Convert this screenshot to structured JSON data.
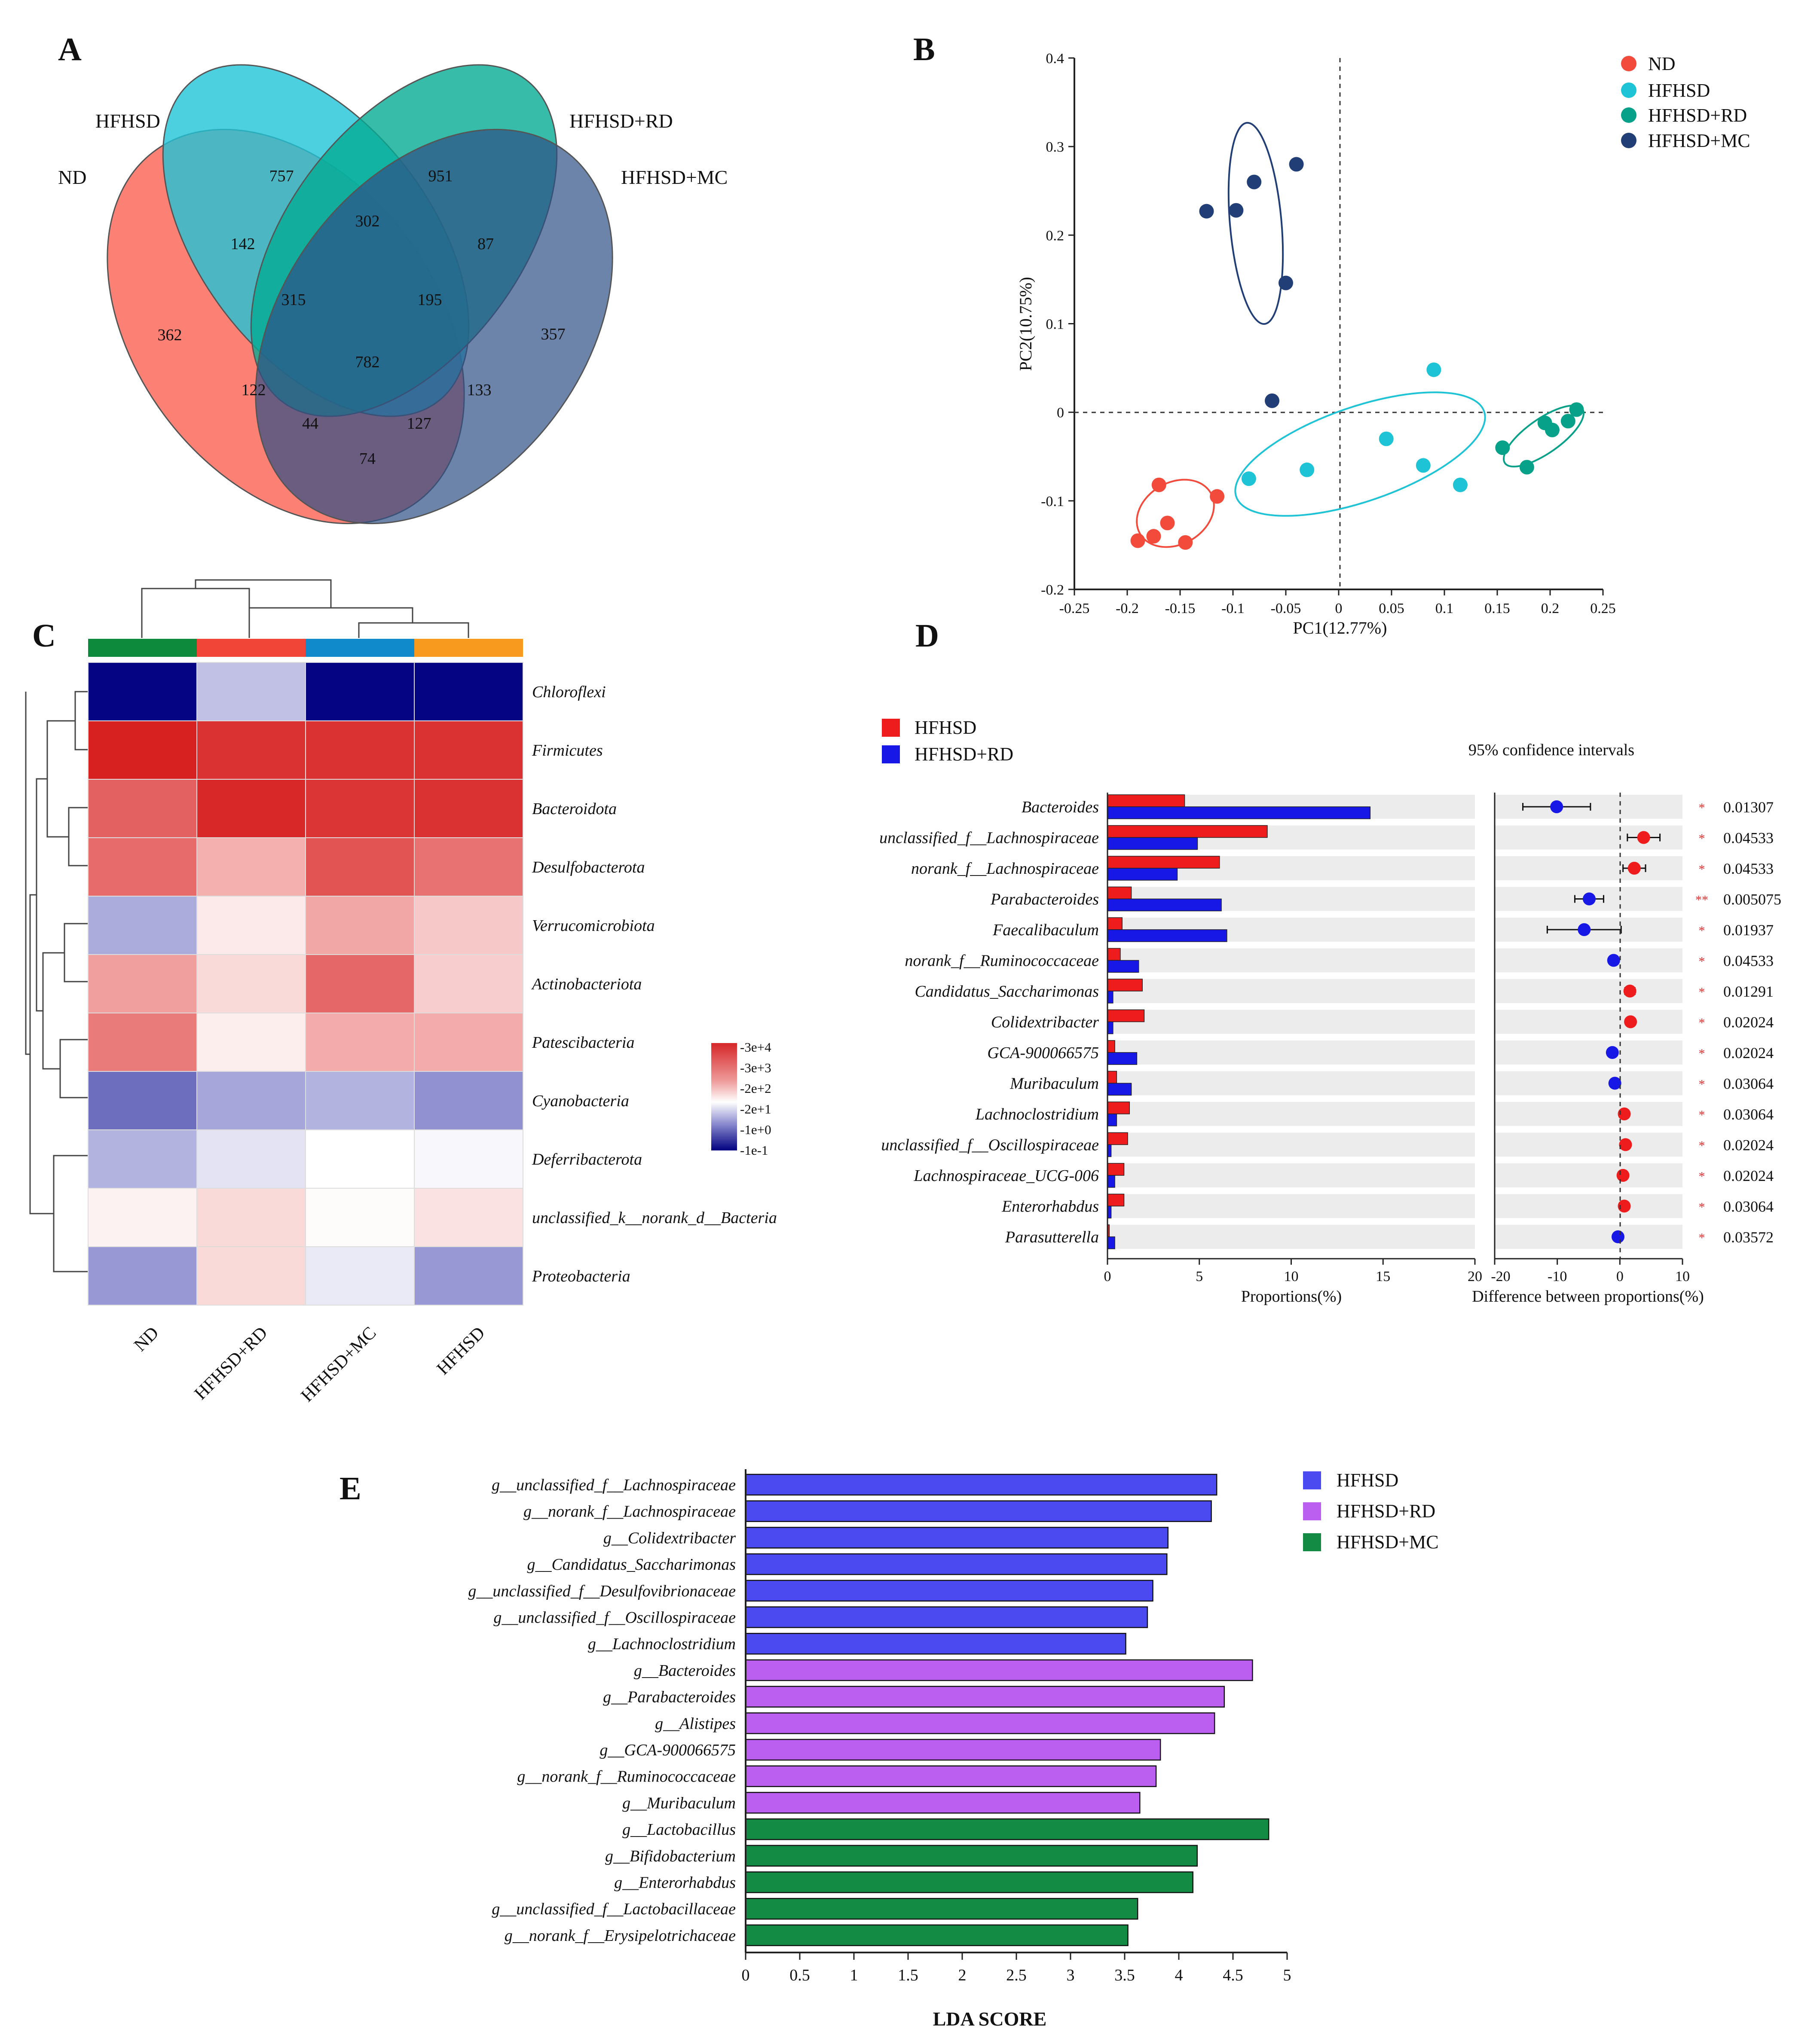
{
  "panels": {
    "A": {
      "letter": "A",
      "sets": [
        {
          "name": "ND",
          "color": "#fc6a5a"
        },
        {
          "name": "HFHSD",
          "color": "#1fc3d6"
        },
        {
          "name": "HFHSD+RD",
          "color": "#05ab94"
        },
        {
          "name": "HFHSD+MC",
          "color": "#2d4e86"
        }
      ],
      "counts": [
        "757",
        "951",
        "142",
        "302",
        "87",
        "362",
        "315",
        "195",
        "357",
        "782",
        "122",
        "133",
        "44",
        "127",
        "74"
      ]
    },
    "B": {
      "letter": "B",
      "chart_data": {
        "type": "scatter",
        "xlabel": "PC1(12.77%)",
        "ylabel": "PC2(10.75%)",
        "xlim": [
          -0.25,
          0.25
        ],
        "ylim": [
          -0.2,
          0.4
        ],
        "xticks": [
          "-0.25",
          "-0.2",
          "-0.15",
          "-0.1",
          "-0.05",
          "0",
          "0.05",
          "0.1",
          "0.15",
          "0.2",
          "0.25"
        ],
        "yticks": [
          "-0.2",
          "-0.1",
          "0",
          "0.1",
          "0.2",
          "0.3",
          "0.4"
        ],
        "legend_position": "top-right",
        "series": [
          {
            "name": "ND",
            "color": "#f24a3b",
            "points": [
              [
                -0.17,
                -0.082
              ],
              [
                -0.19,
                -0.145
              ],
              [
                -0.175,
                -0.14
              ],
              [
                -0.162,
                -0.125
              ],
              [
                -0.145,
                -0.147
              ],
              [
                -0.115,
                -0.095
              ]
            ]
          },
          {
            "name": "HFHSD",
            "color": "#1fc3d6",
            "points": [
              [
                -0.085,
                -0.075
              ],
              [
                -0.03,
                -0.065
              ],
              [
                0.045,
                -0.03
              ],
              [
                0.09,
                0.048
              ],
              [
                0.08,
                -0.06
              ],
              [
                0.115,
                -0.082
              ]
            ]
          },
          {
            "name": "HFHSD+RD",
            "color": "#07a088",
            "points": [
              [
                0.155,
                -0.04
              ],
              [
                0.178,
                -0.062
              ],
              [
                0.195,
                -0.012
              ],
              [
                0.202,
                -0.02
              ],
              [
                0.217,
                -0.01
              ],
              [
                0.225,
                0.003
              ]
            ]
          },
          {
            "name": "HFHSD+MC",
            "color": "#213f76",
            "points": [
              [
                -0.125,
                0.227
              ],
              [
                -0.097,
                0.228
              ],
              [
                -0.08,
                0.26
              ],
              [
                -0.04,
                0.28
              ],
              [
                -0.05,
                0.146
              ],
              [
                -0.063,
                0.013
              ]
            ]
          }
        ]
      }
    },
    "C": {
      "letter": "C",
      "chart_data": {
        "type": "heatmap",
        "columns": [
          "ND",
          "HFHSD+RD",
          "HFHSD+MC",
          "HFHSD"
        ],
        "column_colors": [
          "#0e8a3d",
          "#f14538",
          "#108acb",
          "#f79a1e"
        ],
        "rows": [
          "Chloroflexi",
          "Firmicutes",
          "Bacteroidota",
          "Desulfobacterota",
          "Verrucomicrobiota",
          "Actinobacteriota",
          "Patescibacteria",
          "Cyanobacteria",
          "Deferribacterota",
          "unclassified_k__norank_d__Bacteria",
          "Proteobacteria"
        ],
        "values_log10": [
          [
            -0.95,
            0.9,
            -0.95,
            -0.95
          ],
          [
            4.35,
            4.1,
            4.1,
            4.1
          ],
          [
            3.4,
            4.25,
            4.05,
            4.1
          ],
          [
            3.25,
            2.3,
            3.6,
            3.15
          ],
          [
            0.75,
            1.6,
            2.4,
            2.0
          ],
          [
            2.5,
            1.8,
            3.3,
            1.95
          ],
          [
            3.0,
            1.55,
            2.35,
            2.35
          ],
          [
            0.2,
            0.7,
            0.8,
            0.55
          ],
          [
            0.8,
            1.15,
            1.35,
            1.3
          ],
          [
            1.5,
            1.8,
            1.4,
            1.7
          ],
          [
            0.6,
            1.8,
            1.2,
            0.6
          ]
        ],
        "colorbar_labels": [
          "3e+4",
          "3e+3",
          "2e+2",
          "2e+1",
          "1e+0",
          "1e-1"
        ]
      }
    },
    "D": {
      "letter": "D",
      "chart_data": {
        "type": "bar",
        "legend": [
          {
            "name": "HFHSD",
            "color": "#ee1c1c"
          },
          {
            "name": "HFHSD+RD",
            "color": "#1717e6"
          }
        ],
        "ci_title": "95% confidence intervals",
        "categories": [
          "Bacteroides",
          "unclassified_f__Lachnospiraceae",
          "norank_f__Lachnospiraceae",
          "Parabacteroides",
          "Faecalibaculum",
          "norank_f__Ruminococcaceae",
          "Candidatus_Saccharimonas",
          "Colidextribacter",
          "GCA-900066575",
          "Muribaculum",
          "Lachnoclostridium",
          "unclassified_f__Oscillospiraceae",
          "Lachnospiraceae_UCG-006",
          "Enterorhabdus",
          "Parasutterella"
        ],
        "series": [
          {
            "name": "HFHSD",
            "values": [
              4.2,
              8.7,
              6.1,
              1.3,
              0.8,
              0.7,
              1.9,
              2.0,
              0.4,
              0.5,
              1.2,
              1.1,
              0.9,
              0.9,
              0.1
            ]
          },
          {
            "name": "HFHSD+RD",
            "values": [
              14.3,
              4.9,
              3.8,
              6.2,
              6.5,
              1.7,
              0.3,
              0.3,
              1.6,
              1.3,
              0.5,
              0.2,
              0.4,
              0.2,
              0.4
            ]
          }
        ],
        "difference": [
          -10.1,
          3.8,
          2.3,
          -4.9,
          -5.7,
          -1.0,
          1.6,
          1.7,
          -1.2,
          -0.8,
          0.7,
          0.9,
          0.5,
          0.7,
          -0.3
        ],
        "ci_low": [
          -15.5,
          1.2,
          0.5,
          -7.2,
          -11.6,
          -1.6,
          0.8,
          1.2,
          -1.8,
          -1.4,
          0.3,
          0.5,
          0.1,
          0.3,
          -0.7
        ],
        "ci_high": [
          -4.7,
          6.4,
          4.1,
          -2.6,
          0.2,
          -0.4,
          2.4,
          2.2,
          -0.6,
          -0.2,
          1.1,
          1.3,
          0.9,
          1.1,
          0.1
        ],
        "point_colors": [
          "blue",
          "red",
          "red",
          "blue",
          "blue",
          "blue",
          "red",
          "red",
          "blue",
          "blue",
          "red",
          "red",
          "red",
          "red",
          "blue"
        ],
        "stars": [
          "*",
          "*",
          "*",
          "**",
          "*",
          "*",
          "*",
          "*",
          "*",
          "*",
          "*",
          "*",
          "*",
          "*",
          "*"
        ],
        "p_values": [
          "0.01307",
          "0.04533",
          "0.04533",
          "0.005075",
          "0.01937",
          "0.04533",
          "0.01291",
          "0.02024",
          "0.02024",
          "0.03064",
          "0.03064",
          "0.02024",
          "0.02024",
          "0.03064",
          "0.03572"
        ],
        "xlabel": "Proportions(%)",
        "xlabel2": "Difference between proportions(%)",
        "xticks": [
          "0",
          "5",
          "10",
          "15",
          "20"
        ],
        "xticks2": [
          "-20",
          "-10",
          "0",
          "10"
        ],
        "xlim": [
          0,
          20
        ],
        "xlim2": [
          -20,
          10
        ]
      }
    },
    "E": {
      "letter": "E",
      "chart_data": {
        "type": "bar",
        "orientation": "horizontal",
        "legend": [
          {
            "name": "HFHSD",
            "color": "#4b49f0"
          },
          {
            "name": "HFHSD+RD",
            "color": "#bb5ff0"
          },
          {
            "name": "HFHSD+MC",
            "color": "#138b44"
          }
        ],
        "categories": [
          "g__unclassified_f__Lachnospiraceae",
          "g__norank_f__Lachnospiraceae",
          "g__Colidextribacter",
          "g__Candidatus_Saccharimonas",
          "g__unclassified_f__Desulfovibrionaceae",
          "g__unclassified_f__Oscillospiraceae",
          "g__Lachnoclostridium",
          "g__Bacteroides",
          "g__Parabacteroides",
          "g__Alistipes",
          "g__GCA-900066575",
          "g__norank_f__Ruminococcaceae",
          "g__Muribaculum",
          "g__Lactobacillus",
          "g__Bifidobacterium",
          "g__Enterorhabdus",
          "g__unclassified_f__Lactobacillaceae",
          "g__norank_f__Erysipelotrichaceae"
        ],
        "values": [
          4.35,
          4.3,
          3.9,
          3.89,
          3.76,
          3.71,
          3.51,
          4.68,
          4.42,
          4.33,
          3.83,
          3.79,
          3.64,
          4.83,
          4.17,
          4.13,
          3.62,
          3.53
        ],
        "groups": [
          "HFHSD",
          "HFHSD",
          "HFHSD",
          "HFHSD",
          "HFHSD",
          "HFHSD",
          "HFHSD",
          "HFHSD+RD",
          "HFHSD+RD",
          "HFHSD+RD",
          "HFHSD+RD",
          "HFHSD+RD",
          "HFHSD+RD",
          "HFHSD+MC",
          "HFHSD+MC",
          "HFHSD+MC",
          "HFHSD+MC",
          "HFHSD+MC"
        ],
        "xlabel": "LDA SCORE",
        "xlim": [
          0,
          5
        ],
        "xticks": [
          "0",
          "0.5",
          "1",
          "1.5",
          "2",
          "2.5",
          "3",
          "3.5",
          "4",
          "4.5",
          "5"
        ]
      }
    }
  }
}
